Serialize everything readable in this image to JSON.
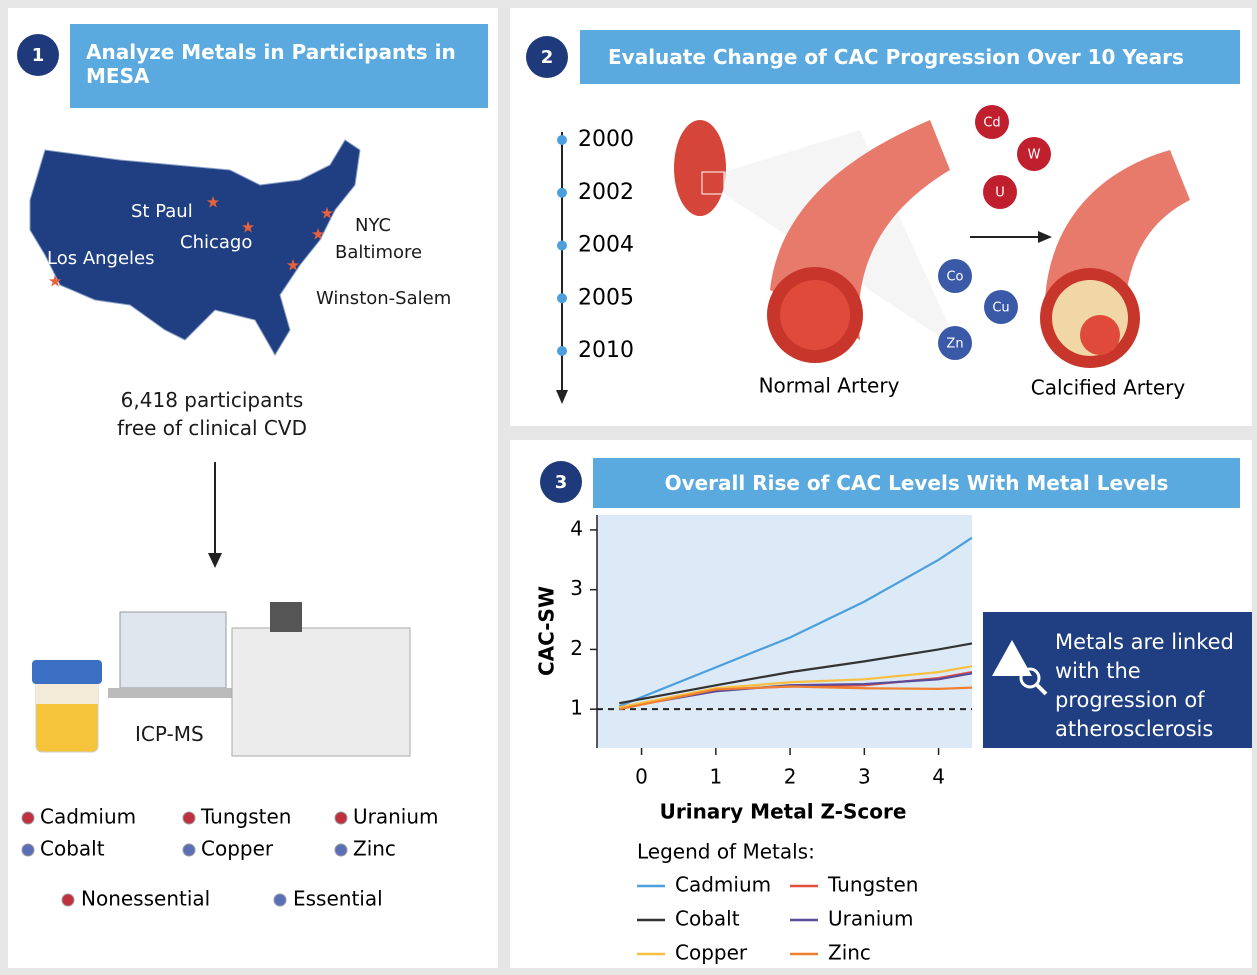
{
  "panels": [
    {
      "number": "1",
      "title": "Analyze Metals in Participants in MESA"
    },
    {
      "number": "2",
      "title": "Evaluate Change of CAC Progression Over 10 Years"
    },
    {
      "number": "3",
      "title": "Overall Rise of CAC Levels With Metal Levels"
    }
  ],
  "map": {
    "cities": [
      "St Paul",
      "Chicago",
      "NYC",
      "Los Angeles",
      "Baltimore",
      "Winston-Salem"
    ]
  },
  "participants": "6,418 participants free of clinical CVD",
  "instrument": "ICP-MS",
  "metals": {
    "nonessential": {
      "label": "Nonessential",
      "items": [
        "Cadmium",
        "Tungsten",
        "Uranium"
      ]
    },
    "essential": {
      "label": "Essential",
      "items": [
        "Cobalt",
        "Copper",
        "Zinc"
      ]
    }
  },
  "timeline": [
    "2000",
    "2002",
    "2004",
    "2005",
    "2010"
  ],
  "metal_symbols": {
    "nonessential": [
      "Cd",
      "W",
      "U"
    ],
    "essential": [
      "Co",
      "Cu",
      "Zn"
    ]
  },
  "arteries": [
    "Normal Artery",
    "Calcified Artery"
  ],
  "callout": "Metals are linked with the progression of atherosclerosis",
  "chart_data": {
    "type": "line",
    "x_label": "Urinary Metal Z-Score",
    "y_label": "CAC-SW",
    "legend_title": "Legend of Metals:",
    "x": [
      -0.3,
      1,
      2,
      3,
      4,
      4.45
    ],
    "series": [
      {
        "name": "Cadmium",
        "color": "#4a9fdc",
        "values": [
          1.05,
          1.7,
          2.2,
          2.8,
          3.5,
          3.87
        ]
      },
      {
        "name": "Tungsten",
        "color": "#e2503c",
        "values": [
          1.03,
          1.33,
          1.38,
          1.4,
          1.52,
          1.62
        ]
      },
      {
        "name": "Cobalt",
        "color": "#333333",
        "values": [
          1.1,
          1.4,
          1.62,
          1.8,
          2.0,
          2.1
        ]
      },
      {
        "name": "Uranium",
        "color": "#5a4a9a",
        "values": [
          1.02,
          1.3,
          1.4,
          1.42,
          1.5,
          1.6
        ]
      },
      {
        "name": "Copper",
        "color": "#f7c040",
        "values": [
          1.03,
          1.35,
          1.45,
          1.5,
          1.62,
          1.72
        ]
      },
      {
        "name": "Zinc",
        "color": "#f08030",
        "values": [
          1.0,
          1.33,
          1.38,
          1.35,
          1.34,
          1.36
        ]
      }
    ],
    "xlim": [
      -0.6,
      4.45
    ],
    "ylim": [
      0.35,
      4.25
    ],
    "xticks": [
      0,
      1,
      2,
      3,
      4
    ],
    "yticks": [
      1,
      2,
      3,
      4
    ],
    "reference_line": 1
  }
}
